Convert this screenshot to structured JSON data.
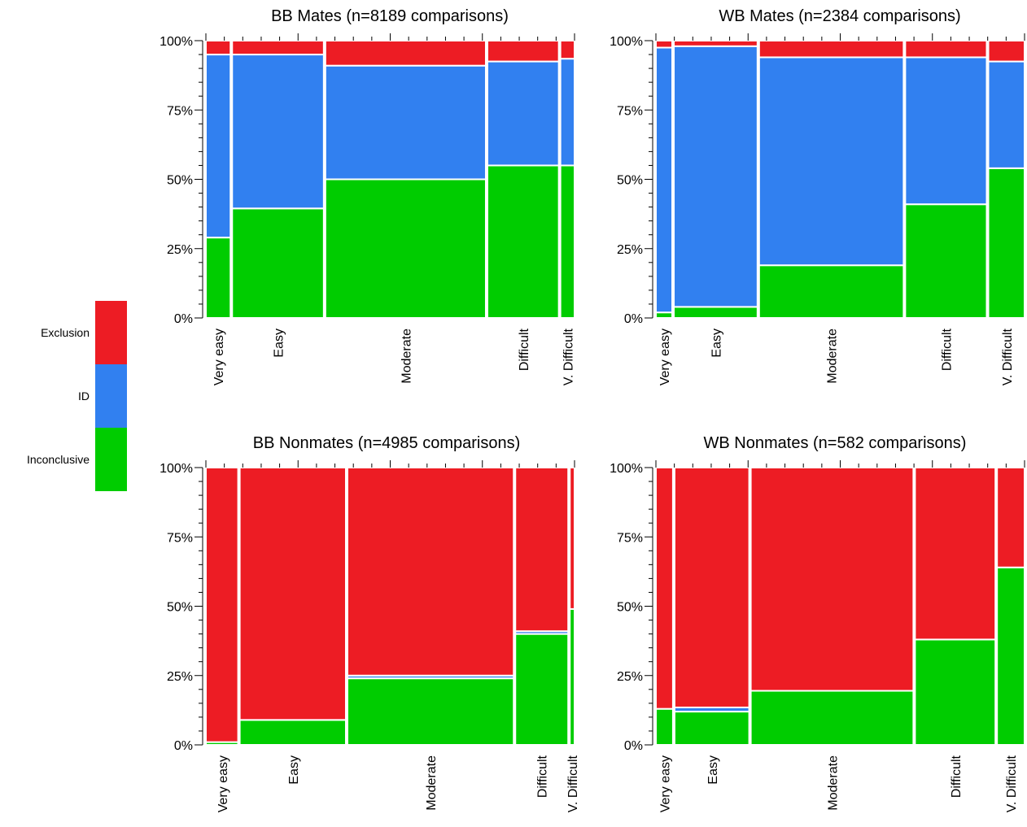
{
  "colors": {
    "Exclusion": "#ED1C24",
    "ID": "#3180F0",
    "Inconclusive": "#00CC00"
  },
  "legend": {
    "items": [
      "Exclusion",
      "ID",
      "Inconclusive"
    ]
  },
  "chart_data": [
    {
      "type": "mosaic",
      "title": "BB Mates (n=8189 comparisons)",
      "y_tick_labels": [
        "0%",
        "25%",
        "50%",
        "75%",
        "100%"
      ],
      "ylim": [
        0,
        100
      ],
      "stack_order": [
        "Inconclusive",
        "ID",
        "Exclusion"
      ],
      "categories": [
        "Very easy",
        "Easy",
        "Moderate",
        "Difficult",
        "V. Difficult"
      ],
      "category_width_fraction": [
        0.068,
        0.253,
        0.443,
        0.197,
        0.039
      ],
      "series": [
        {
          "name": "Inconclusive",
          "values": [
            29,
            39.5,
            50,
            55,
            55
          ]
        },
        {
          "name": "ID",
          "values": [
            66,
            55.5,
            41,
            37.5,
            38.5
          ]
        },
        {
          "name": "Exclusion",
          "values": [
            5,
            5,
            9,
            7.5,
            6.5
          ]
        }
      ]
    },
    {
      "type": "mosaic",
      "title": "WB Mates (n=2384 comparisons)",
      "y_tick_labels": [
        "0%",
        "25%",
        "50%",
        "75%",
        "100%"
      ],
      "ylim": [
        0,
        100
      ],
      "stack_order": [
        "Inconclusive",
        "ID",
        "Exclusion"
      ],
      "categories": [
        "Very easy",
        "Easy",
        "Moderate",
        "Difficult",
        "V. Difficult"
      ],
      "category_width_fraction": [
        0.045,
        0.231,
        0.399,
        0.225,
        0.1
      ],
      "series": [
        {
          "name": "Inconclusive",
          "values": [
            2,
            4,
            19,
            41,
            54
          ]
        },
        {
          "name": "ID",
          "values": [
            95.5,
            94,
            75,
            53,
            38.5
          ]
        },
        {
          "name": "Exclusion",
          "values": [
            2.5,
            2,
            6,
            6,
            7.5
          ]
        }
      ]
    },
    {
      "type": "mosaic",
      "title": "BB Nonmates (n=4985 comparisons)",
      "y_tick_labels": [
        "0%",
        "25%",
        "50%",
        "75%",
        "100%"
      ],
      "ylim": [
        0,
        100
      ],
      "stack_order": [
        "Inconclusive",
        "ID",
        "Exclusion"
      ],
      "categories": [
        "Very easy",
        "Easy",
        "Moderate",
        "Difficult",
        "V. Difficult"
      ],
      "category_width_fraction": [
        0.089,
        0.293,
        0.459,
        0.146,
        0.013
      ],
      "series": [
        {
          "name": "Inconclusive",
          "values": [
            1,
            9,
            24,
            40,
            49
          ]
        },
        {
          "name": "ID",
          "values": [
            0,
            0,
            1,
            1,
            0
          ]
        },
        {
          "name": "Exclusion",
          "values": [
            99,
            91,
            75,
            59,
            51
          ]
        }
      ]
    },
    {
      "type": "mosaic",
      "title": "WB Nonmates (n=582 comparisons)",
      "y_tick_labels": [
        "0%",
        "25%",
        "50%",
        "75%",
        "100%"
      ],
      "ylim": [
        0,
        100
      ],
      "stack_order": [
        "Inconclusive",
        "ID",
        "Exclusion"
      ],
      "categories": [
        "Very easy",
        "Easy",
        "Moderate",
        "Difficult",
        "V. Difficult"
      ],
      "category_width_fraction": [
        0.047,
        0.206,
        0.449,
        0.222,
        0.076
      ],
      "series": [
        {
          "name": "Inconclusive",
          "values": [
            13,
            12,
            19.5,
            38,
            64
          ]
        },
        {
          "name": "ID",
          "values": [
            0,
            1.5,
            0,
            0,
            0
          ]
        },
        {
          "name": "Exclusion",
          "values": [
            87,
            86.5,
            80.5,
            62,
            36
          ]
        }
      ]
    }
  ]
}
